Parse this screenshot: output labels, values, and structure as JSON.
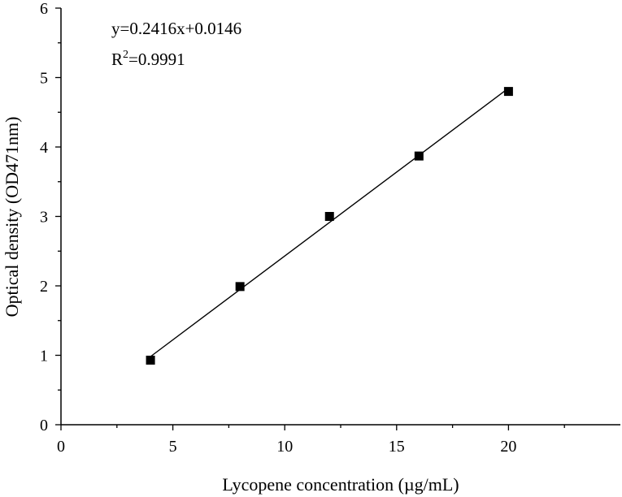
{
  "chart_data": {
    "type": "scatter",
    "xlabel": "Lycopene concentration (µg/mL)",
    "ylabel": "Optical density (OD471nm)",
    "xlim": [
      0,
      25
    ],
    "ylim": [
      0,
      6
    ],
    "x_ticks": [
      "0",
      "5",
      "10",
      "15",
      "20"
    ],
    "y_ticks": [
      "0",
      "1",
      "2",
      "3",
      "4",
      "5",
      "6"
    ],
    "series": [
      {
        "marker": "square",
        "color": "#000000",
        "points": [
          {
            "x": 4,
            "y": 0.93
          },
          {
            "x": 8,
            "y": 1.99
          },
          {
            "x": 12,
            "y": 3.0
          },
          {
            "x": 16,
            "y": 3.87
          },
          {
            "x": 20,
            "y": 4.8
          }
        ]
      }
    ],
    "fit": {
      "slope": 0.2416,
      "intercept": 0.0146,
      "x_range": [
        4,
        20
      ],
      "equation": "y=0.2416x+0.0146",
      "r2_prefix": "R",
      "r2_sup": "2",
      "r2_value": "=0.9991"
    },
    "grid": false,
    "legend": "none"
  }
}
